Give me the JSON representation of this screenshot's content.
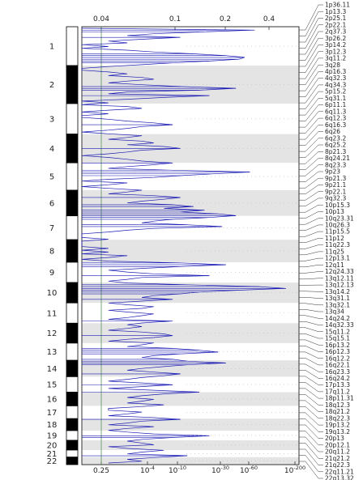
{
  "chart_data": {
    "type": "line",
    "title": "",
    "xlabel": "",
    "ylabel": "",
    "grid": false,
    "top_axis": {
      "ticks": [
        0.04,
        0.1,
        0.2,
        0.4
      ],
      "labels": [
        "0.04",
        "0.1",
        "0.2",
        "0.4"
      ]
    },
    "bottom_axis": {
      "ticks": [
        "0.25",
        "10^-4",
        "10^-10",
        "10^-30",
        "10^-60",
        "10^-200"
      ]
    },
    "threshold": 0.25,
    "chromosomes": [
      {
        "name": "1",
        "fraction": 0.088
      },
      {
        "name": "2",
        "fraction": 0.086
      },
      {
        "name": "3",
        "fraction": 0.069
      },
      {
        "name": "4",
        "fraction": 0.065
      },
      {
        "name": "5",
        "fraction": 0.062
      },
      {
        "name": "6",
        "fraction": 0.058
      },
      {
        "name": "7",
        "fraction": 0.054
      },
      {
        "name": "8",
        "fraction": 0.051
      },
      {
        "name": "9",
        "fraction": 0.046
      },
      {
        "name": "10",
        "fraction": 0.046
      },
      {
        "name": "11",
        "fraction": 0.046
      },
      {
        "name": "12",
        "fraction": 0.045
      },
      {
        "name": "13",
        "fraction": 0.039
      },
      {
        "name": "14",
        "fraction": 0.037
      },
      {
        "name": "15",
        "fraction": 0.035
      },
      {
        "name": "16",
        "fraction": 0.031
      },
      {
        "name": "17",
        "fraction": 0.029
      },
      {
        "name": "18",
        "fraction": 0.027
      },
      {
        "name": "19",
        "fraction": 0.022
      },
      {
        "name": "20",
        "fraction": 0.022
      },
      {
        "name": "21",
        "fraction": 0.016
      },
      {
        "name": "22",
        "fraction": 0.017
      }
    ],
    "cytobands": [
      "1p36.11",
      "1p13.3",
      "2p25.1",
      "2p22.1",
      "2q37.3",
      "3p26.2",
      "3p14.2",
      "3p12.3",
      "3q11.2",
      "3q28",
      "4p16.3",
      "4q32.3",
      "4q34.3",
      "5p15.2",
      "5q31.1",
      "6p11.1",
      "6q11.3",
      "6q12.3",
      "6q16.3",
      "6q26",
      "6q23.2",
      "6q25.2",
      "8p21.3",
      "8q24.21",
      "8q23.3",
      "9p23",
      "9p21.3",
      "9p21.1",
      "9p22.1",
      "9q32.3",
      "10p15.3",
      "10p13",
      "10q23.31",
      "10q26.3",
      "11p15.5",
      "11p12",
      "11q22.3",
      "11q25",
      "12p13.1",
      "12q11",
      "12q24.33",
      "13q12.11",
      "13q12.13",
      "13q14.2",
      "13q31.1",
      "13q32.1",
      "13q34",
      "14q24.2",
      "14q32.33",
      "15q11.2",
      "15q15.1",
      "16p13.2",
      "16p12.3",
      "16q12.2",
      "16q22.1",
      "16q23.3",
      "16q24.2",
      "17p13.3",
      "17q11.2",
      "18p11.31",
      "18q12.3",
      "18q21.2",
      "18q22.3",
      "19p13.2",
      "19q13.2",
      "20p13",
      "20p12.1",
      "20q11.2",
      "21q21.2",
      "21q22.3",
      "22q11.21",
      "22q13.32"
    ],
    "series": [
      {
        "values": [
          0.02,
          0.28,
          0.12,
          0.06,
          0.04,
          0.09,
          0.05,
          0.03,
          0.04,
          0.02,
          0.03,
          0.02,
          0.04,
          0.06,
          0.11,
          0.18,
          0.24,
          0.22,
          0.14,
          0.08,
          0.05,
          0.03,
          0.02,
          0.02,
          0.03,
          0.04,
          0.03,
          0.05,
          0.06,
          0.04,
          0.03,
          0.05,
          0.09,
          0.21,
          0.12,
          0.04,
          0.03,
          0.14,
          0.07,
          0.04,
          0.02,
          0.03,
          0.02,
          0.04,
          0.05,
          0.03,
          0.02,
          0.03,
          0.02,
          0.02,
          0.03,
          0.04,
          0.06,
          0.08,
          0.05,
          0.04,
          0.03,
          0.02,
          0.03,
          0.05,
          0.04,
          0.03,
          0.05,
          0.06,
          0.04,
          0.07,
          0.09,
          0.05,
          0.04,
          0.03,
          0.02,
          0.03,
          0.04,
          0.05,
          0.08,
          0.06,
          0.04,
          0.03,
          0.08,
          0.26,
          0.15,
          0.09,
          0.06,
          0.03,
          0.02,
          0.04,
          0.03,
          0.02,
          0.03,
          0.05,
          0.04,
          0.03,
          0.06,
          0.09,
          0.07,
          0.05,
          0.04,
          0.08,
          0.11,
          0.07,
          0.13,
          0.09,
          0.16,
          0.21,
          0.14,
          0.08,
          0.06,
          0.05,
          0.1,
          0.17,
          0.06,
          0.04,
          0.03,
          0.02,
          0.02,
          0.02,
          0.03,
          0.02,
          0.02,
          0.02,
          0.02,
          0.03,
          0.02,
          0.03,
          0.02,
          0.04,
          0.03,
          0.02,
          0.03,
          0.09,
          0.18,
          0.09,
          0.05,
          0.03,
          0.04,
          0.06,
          0.14,
          0.05,
          0.04,
          0.03,
          0.04,
          0.1,
          0.3,
          0.45,
          0.22,
          0.12,
          0.09,
          0.06,
          0.05,
          0.08,
          0.05,
          0.03,
          0.04,
          0.06,
          0.05,
          0.03,
          0.04,
          0.06,
          0.05,
          0.04,
          0.03,
          0.08,
          0.05,
          0.04,
          0.05,
          0.04,
          0.03,
          0.05,
          0.07,
          0.08,
          0.06,
          0.04,
          0.03,
          0.06,
          0.05,
          0.04,
          0.08,
          0.12,
          0.16,
          0.09,
          0.06,
          0.05,
          0.08,
          0.1,
          0.18,
          0.1,
          0.07,
          0.05,
          0.04,
          0.06,
          0.09,
          0.07,
          0.05,
          0.04,
          0.03,
          0.05,
          0.08,
          0.05,
          0.03,
          0.06,
          0.12,
          0.07,
          0.05,
          0.04,
          0.06,
          0.05,
          0.04,
          0.07,
          0.05,
          0.03,
          0.03,
          0.05,
          0.04,
          0.03,
          0.06,
          0.09,
          0.05,
          0.04,
          0.03,
          0.06,
          0.04,
          0.03,
          0.04,
          0.06,
          0.14,
          0.08,
          0.05,
          0.04,
          0.05,
          0.06,
          0.03,
          0.04,
          0.07,
          0.05,
          0.04,
          0.1,
          0.06,
          0.04,
          0.05,
          0.03
        ]
      }
    ]
  }
}
